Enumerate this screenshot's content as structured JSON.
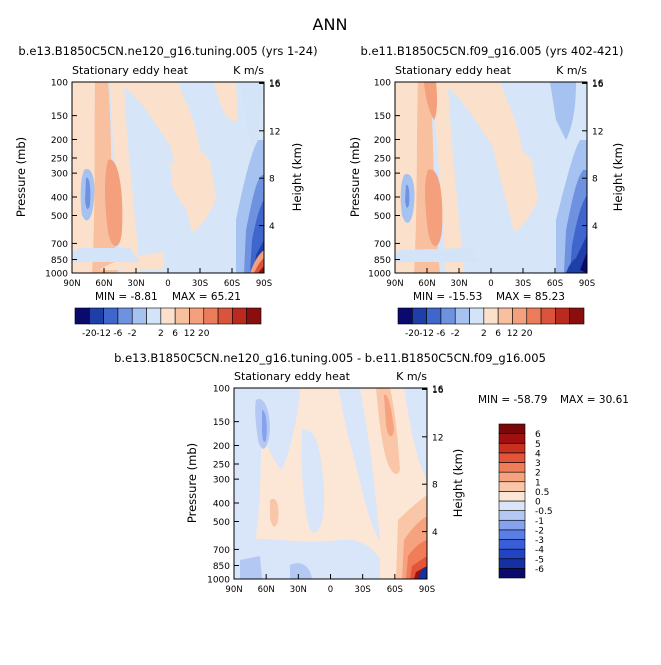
{
  "figure": {
    "title": "ANN"
  },
  "colors": {
    "scale_top": [
      "#0a0a6e",
      "#1f3fa8",
      "#3f66cc",
      "#6f92e0",
      "#a6c2f0",
      "#d3e3f8",
      "#fbe1cc",
      "#f9c0a0",
      "#f4a07c",
      "#ec7d5a",
      "#d9543a",
      "#bb2a1e",
      "#8b0e0e"
    ],
    "scale_diff": [
      "#0a0a6e",
      "#1530a0",
      "#2244c4",
      "#3a5ed8",
      "#5a7ee6",
      "#86a2ee",
      "#b4c8f4",
      "#d9e6fa",
      "#fce6d6",
      "#f9c6a8",
      "#f6a27e",
      "#f07c58",
      "#e3543a",
      "#c8301f",
      "#a01010",
      "#7a0808"
    ]
  },
  "panels": [
    {
      "id": "top-left",
      "case": "b.e13.B1850C5CN.ne120_g16.tuning.005 (yrs 1-24)",
      "left_label": "Stationary eddy heat",
      "right_label": "K m/s",
      "ylabel": "Pressure (mb)",
      "ylabel_right": "Height (km)",
      "min_label": "MIN = ",
      "min_value": "-8.81",
      "max_label": "MAX = ",
      "max_value": "65.21"
    },
    {
      "id": "top-right",
      "case": "b.e11.B1850C5CN.f09_g16.005 (yrs 402-421)",
      "left_label": "Stationary eddy heat",
      "right_label": "K m/s",
      "ylabel": "Pressure (mb)",
      "ylabel_right": "Height (km)",
      "min_label": "MIN = ",
      "min_value": "-15.53",
      "max_label": "MAX = ",
      "max_value": "85.23"
    },
    {
      "id": "difference",
      "case": "b.e13.B1850C5CN.ne120_g16.tuning.005 - b.e11.B1850C5CN.f09_g16.005",
      "left_label": "Stationary eddy heat",
      "right_label": "K m/s",
      "ylabel": "Pressure (mb)",
      "ylabel_right": "Height (km)",
      "min_label": "MIN = ",
      "min_value": "-58.79",
      "max_label": "MAX = ",
      "max_value": "30.61"
    }
  ],
  "chart_data": [
    {
      "type": "heatmap",
      "title": "b.e13.B1850C5CN.ne120_g16.tuning.005 (yrs 1-24)",
      "subtitle_left": "Stationary eddy heat",
      "subtitle_right": "K m/s",
      "xlabel": "",
      "ylabel": "Pressure (mb)",
      "ylabel_right": "Height (km)",
      "x_ticks": [
        "90N",
        "60N",
        "30N",
        "0",
        "30S",
        "60S",
        "90S"
      ],
      "x_values": [
        90,
        60,
        30,
        0,
        -30,
        -60,
        -90
      ],
      "xlim": [
        90,
        -90
      ],
      "y_ticks": [
        100,
        150,
        200,
        250,
        300,
        400,
        500,
        700,
        850,
        1000
      ],
      "ylim": [
        100,
        1000
      ],
      "y_scale": "log",
      "y_right_ticks": [
        4,
        8,
        12,
        16
      ],
      "levels": [
        -20,
        -12,
        -6,
        -2,
        2,
        6,
        12,
        20
      ],
      "level_labels": [
        "-20",
        "-12",
        "-6",
        "-2",
        "2",
        "6",
        "12",
        "20"
      ],
      "min": -8.81,
      "max": 65.21,
      "grid": false
    },
    {
      "type": "heatmap",
      "title": "b.e11.B1850C5CN.f09_g16.005 (yrs 402-421)",
      "subtitle_left": "Stationary eddy heat",
      "subtitle_right": "K m/s",
      "xlabel": "",
      "ylabel": "Pressure (mb)",
      "ylabel_right": "Height (km)",
      "x_ticks": [
        "90N",
        "60N",
        "30N",
        "0",
        "30S",
        "60S",
        "90S"
      ],
      "x_values": [
        90,
        60,
        30,
        0,
        -30,
        -60,
        -90
      ],
      "xlim": [
        90,
        -90
      ],
      "y_ticks": [
        100,
        150,
        200,
        250,
        300,
        400,
        500,
        700,
        850,
        1000
      ],
      "ylim": [
        100,
        1000
      ],
      "y_scale": "log",
      "y_right_ticks": [
        4,
        8,
        12,
        16
      ],
      "levels": [
        -20,
        -12,
        -6,
        -2,
        2,
        6,
        12,
        20
      ],
      "level_labels": [
        "-20",
        "-12",
        "-6",
        "-2",
        "2",
        "6",
        "12",
        "20"
      ],
      "min": -15.53,
      "max": 85.23,
      "grid": false
    },
    {
      "type": "heatmap",
      "title": "b.e13.B1850C5CN.ne120_g16.tuning.005 - b.e11.B1850C5CN.f09_g16.005",
      "subtitle_left": "Stationary eddy heat",
      "subtitle_right": "K m/s",
      "xlabel": "",
      "ylabel": "Pressure (mb)",
      "ylabel_right": "Height (km)",
      "x_ticks": [
        "90N",
        "60N",
        "30N",
        "0",
        "30S",
        "60S",
        "90S"
      ],
      "x_values": [
        90,
        60,
        30,
        0,
        -30,
        -60,
        -90
      ],
      "xlim": [
        90,
        -90
      ],
      "y_ticks": [
        100,
        150,
        200,
        250,
        300,
        400,
        500,
        700,
        850,
        1000
      ],
      "ylim": [
        100,
        1000
      ],
      "y_scale": "log",
      "y_right_ticks": [
        4,
        8,
        12,
        16
      ],
      "levels": [
        -6,
        -5,
        -4,
        -3,
        -2,
        -1,
        -0.5,
        0,
        0.5,
        1,
        2,
        3,
        4,
        5,
        6
      ],
      "level_labels": [
        "-6",
        "-5",
        "-4",
        "-3",
        "-2",
        "-1",
        "-0.5",
        "0",
        "0.5",
        "1",
        "2",
        "3",
        "4",
        "5",
        "6"
      ],
      "min": -58.79,
      "max": 30.61,
      "grid": false
    }
  ]
}
